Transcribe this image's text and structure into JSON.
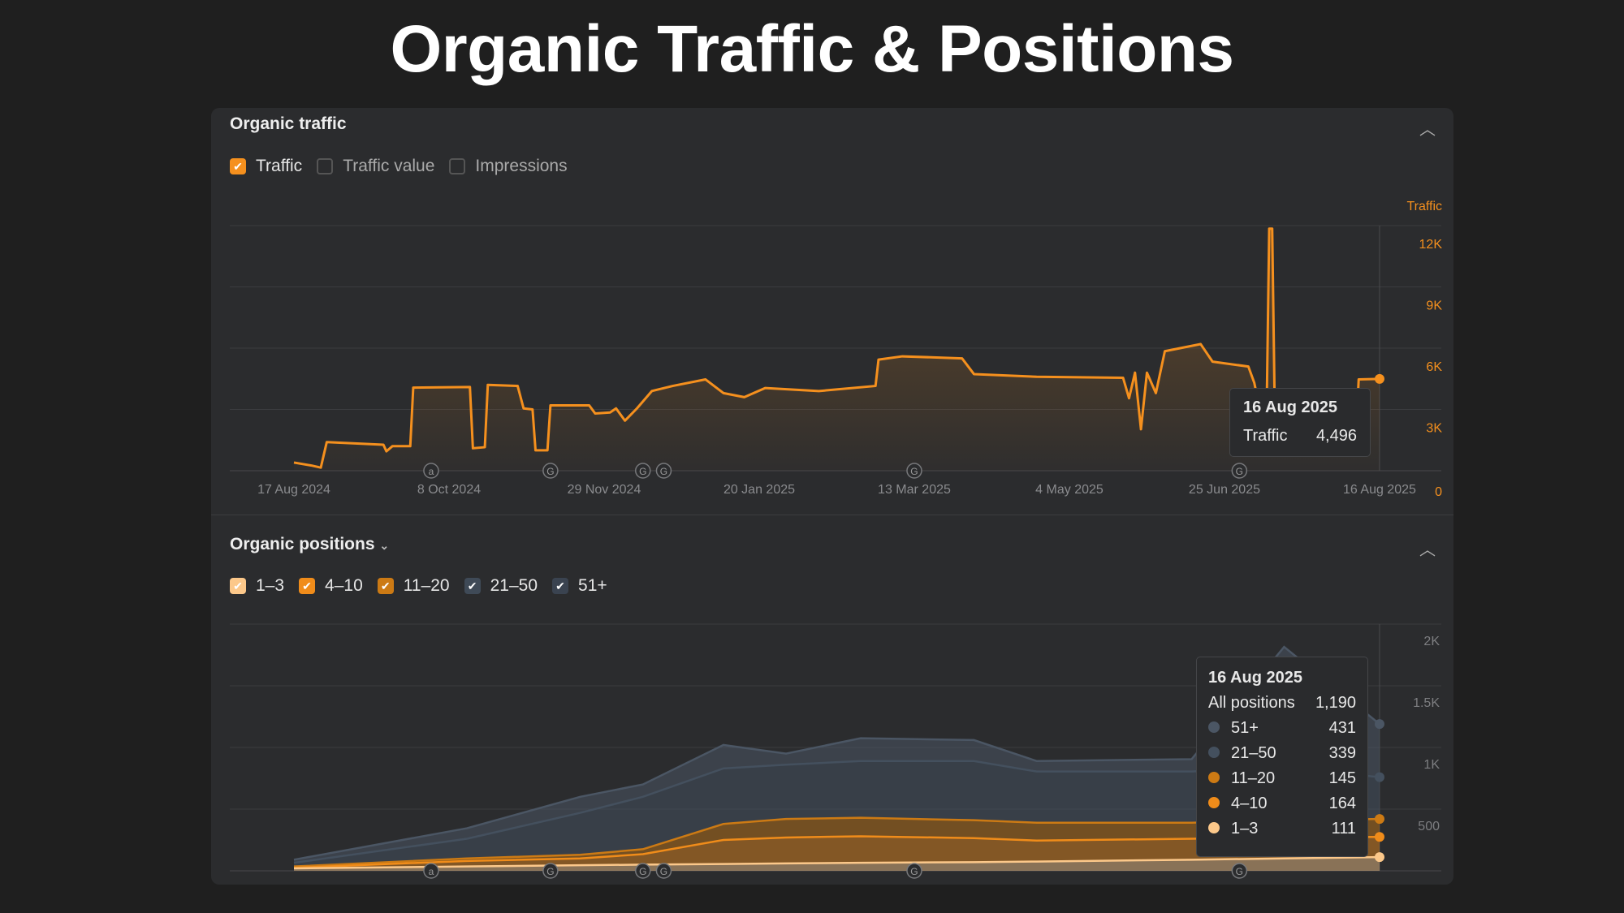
{
  "title": "Organic Traffic & Positions",
  "traffic_panel": {
    "title": "Organic traffic",
    "collapse_icon": "chevron-up-icon",
    "legend": [
      {
        "label": "Traffic",
        "checked": true,
        "color": "#f5901e"
      },
      {
        "label": "Traffic value",
        "checked": false
      },
      {
        "label": "Impressions",
        "checked": false
      }
    ],
    "tooltip": {
      "date": "16 Aug 2025",
      "label": "Traffic",
      "value": "4,496"
    }
  },
  "positions_panel": {
    "title": "Organic positions",
    "dropdown_icon": "chevron-down-icon",
    "collapse_icon": "chevron-up-icon",
    "legend": [
      {
        "label": "1–3",
        "color": "#fcc88a"
      },
      {
        "label": "4–10",
        "color": "#f08c1a"
      },
      {
        "label": "11–20",
        "color": "#cc7a14"
      },
      {
        "label": "21–50",
        "color": "#3f4a57"
      },
      {
        "label": "51+",
        "color": "#3a4350"
      }
    ],
    "tooltip": {
      "date": "16 Aug 2025",
      "total_label": "All positions",
      "total": "1,190",
      "rows": [
        {
          "label": "51+",
          "value": "431",
          "color": "#4b5664"
        },
        {
          "label": "21–50",
          "value": "339",
          "color": "#44505e"
        },
        {
          "label": "11–20",
          "value": "145",
          "color": "#cc7a14"
        },
        {
          "label": "4–10",
          "value": "164",
          "color": "#f08c1a"
        },
        {
          "label": "1–3",
          "value": "111",
          "color": "#fcc88a"
        }
      ]
    }
  },
  "chart_data": [
    {
      "type": "line",
      "title": "Organic traffic",
      "ylabel": "Traffic",
      "ylim": [
        0,
        12000
      ],
      "yticks": [
        "0",
        "3K",
        "6K",
        "9K",
        "12K"
      ],
      "ytick_values": [
        0,
        3000,
        6000,
        9000,
        12000
      ],
      "xlabel": "",
      "x_unit": "days since 17 Aug 2024",
      "xlim": [
        0,
        364
      ],
      "xticks": [
        {
          "day": 0,
          "label": "17 Aug 2024"
        },
        {
          "day": 52,
          "label": "8 Oct 2024"
        },
        {
          "day": 104,
          "label": "29 Nov 2024"
        },
        {
          "day": 156,
          "label": "20 Jan 2025"
        },
        {
          "day": 208,
          "label": "13 Mar 2025"
        },
        {
          "day": 260,
          "label": "4 May 2025"
        },
        {
          "day": 312,
          "label": "25 Jun 2025"
        },
        {
          "day": 364,
          "label": "16 Aug 2025"
        }
      ],
      "annotations": [
        {
          "day": 46,
          "label": "a"
        },
        {
          "day": 86,
          "label": "G"
        },
        {
          "day": 117,
          "label": "G"
        },
        {
          "day": 124,
          "label": "G"
        },
        {
          "day": 208,
          "label": "G"
        },
        {
          "day": 317,
          "label": "G"
        }
      ],
      "series": [
        {
          "name": "Traffic",
          "color": "#f5901e",
          "points": [
            [
              0,
              400
            ],
            [
              6,
              250
            ],
            [
              9,
              150
            ],
            [
              11,
              1400
            ],
            [
              30,
              1270
            ],
            [
              31,
              950
            ],
            [
              33,
              1200
            ],
            [
              39,
              1200
            ],
            [
              40,
              4070
            ],
            [
              59,
              4100
            ],
            [
              60,
              1100
            ],
            [
              64,
              1150
            ],
            [
              65,
              4200
            ],
            [
              75,
              4150
            ],
            [
              77,
              3050
            ],
            [
              80,
              3000
            ],
            [
              81,
              1000
            ],
            [
              85,
              1000
            ],
            [
              86,
              3200
            ],
            [
              99,
              3200
            ],
            [
              101,
              2800
            ],
            [
              106,
              2850
            ],
            [
              108,
              3050
            ],
            [
              111,
              2450
            ],
            [
              115,
              3050
            ],
            [
              120,
              3900
            ],
            [
              127,
              4150
            ],
            [
              138,
              4470
            ],
            [
              144,
              3800
            ],
            [
              151,
              3600
            ],
            [
              158,
              4050
            ],
            [
              176,
              3900
            ],
            [
              195,
              4150
            ],
            [
              196,
              5440
            ],
            [
              204,
              5600
            ],
            [
              224,
              5500
            ],
            [
              228,
              4730
            ],
            [
              249,
              4600
            ],
            [
              278,
              4550
            ],
            [
              280,
              3550
            ],
            [
              282,
              4800
            ],
            [
              284,
              2030
            ],
            [
              286,
              4800
            ],
            [
              289,
              3800
            ],
            [
              292,
              5850
            ],
            [
              304,
              6200
            ],
            [
              308,
              5340
            ],
            [
              320,
              5100
            ],
            [
              322,
              4300
            ],
            [
              326,
              1500
            ],
            [
              327,
              11850
            ],
            [
              328,
              11850
            ],
            [
              329,
              1500
            ],
            [
              356,
              1500
            ],
            [
              357,
              4470
            ],
            [
              364,
              4496
            ]
          ]
        }
      ]
    },
    {
      "type": "area",
      "stacked": true,
      "title": "Organic positions",
      "ylim": [
        0,
        2000
      ],
      "yticks": [
        "500",
        "1K",
        "1.5K",
        "2K"
      ],
      "ytick_values": [
        500,
        1000,
        1500,
        2000
      ],
      "x_unit": "days since 17 Aug 2024",
      "x": [
        0,
        58,
        96,
        117,
        144,
        165,
        190,
        228,
        249,
        301,
        332,
        364
      ],
      "annotations": [
        {
          "day": 46,
          "label": "a"
        },
        {
          "day": 86,
          "label": "G"
        },
        {
          "day": 117,
          "label": "G"
        },
        {
          "day": 124,
          "label": "G"
        },
        {
          "day": 208,
          "label": "G"
        },
        {
          "day": 317,
          "label": "G"
        }
      ],
      "series": [
        {
          "name": "1–3",
          "color": "#fcc88a",
          "values": [
            20,
            35,
            45,
            50,
            55,
            60,
            65,
            70,
            75,
            90,
            100,
            111
          ]
        },
        {
          "name": "4–10",
          "color": "#f08c1a",
          "values": [
            5,
            45,
            55,
            85,
            195,
            210,
            215,
            195,
            170,
            170,
            170,
            164
          ]
        },
        {
          "name": "11–20",
          "color": "#cc7a14",
          "values": [
            10,
            20,
            30,
            40,
            130,
            150,
            150,
            145,
            145,
            130,
            140,
            145
          ]
        },
        {
          "name": "21–50",
          "color": "#44505e",
          "values": [
            30,
            160,
            340,
            425,
            450,
            440,
            460,
            480,
            415,
            415,
            430,
            339
          ]
        },
        {
          "name": "51+",
          "color": "#4b5664",
          "values": [
            25,
            85,
            130,
            100,
            190,
            90,
            185,
            170,
            85,
            100,
            975,
            431
          ]
        }
      ]
    }
  ]
}
